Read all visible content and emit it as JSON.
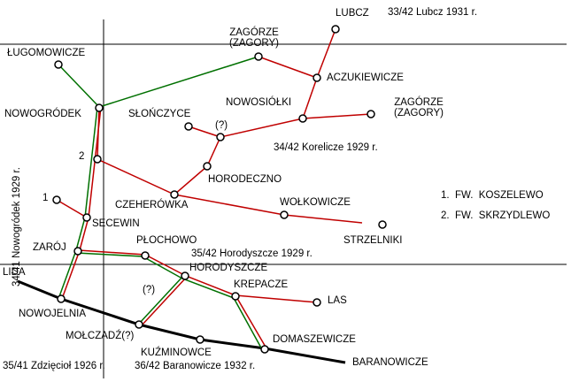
{
  "colors": {
    "red_line": "#c00000",
    "green_line": "#007000",
    "main_line": "#000000",
    "grid": "#000000"
  },
  "sheets": {
    "lubcz": "33/42 Lubcz 1931 r.",
    "korelicze": "34/42 Korelicze 1929 r.",
    "nowogrodek": "34/41 Nowogródek 1929 r.",
    "horodyszcze": "35/42 Horodyszcze 1929 r.",
    "zdzieciol": "35/41 Zdzięcioł 1926 r.",
    "baranowicze": "36/42 Baranowicze 1932 r."
  },
  "places": {
    "lubcz": "LUBCZ",
    "zagorze_top": "ZAGÓRZE\n(ZAGORY)",
    "lugomowicze": "ŁUGOMOWICZE",
    "aczukiewicze": "ACZUKIEWICZE",
    "nowosiolki": "NOWOSIÓŁKI",
    "zagorze_right": "ZAGÓRZE\n(ZAGORY)",
    "nowogrodek": "NOWOGRÓDEK",
    "slonczyce": "SŁOŃCZYCE",
    "unknown1": "(?)",
    "junction2": "2",
    "horodeczno": "HORODECZNO",
    "junction1": "1",
    "czeherowka": "CZEHERÓWKA",
    "wolkowicze": "WOŁKOWICZE",
    "secewin": "SECEWIN",
    "strzelniki": "STRZELNIKI",
    "zaroj": "ZARÓJ",
    "plochowo": "PŁOCHOWO",
    "horodyszcze": "HORODYSZCZE",
    "lida": "LIDA",
    "krepacze": "KREPACZE",
    "unknown2": "(?)",
    "las": "LAS",
    "nowojelnia": "NOWOJELNIA",
    "molczadz": "MOŁCZADŹ(?)",
    "kuzminowce": "KUŹMINOWCE",
    "domaszewicze": "DOMASZEWICZE",
    "baranowicze": "BARANOWICZE"
  },
  "legend": [
    "1.  FW.  KOSZELEWO",
    "2.  FW.  SKRZYDLEWO"
  ]
}
